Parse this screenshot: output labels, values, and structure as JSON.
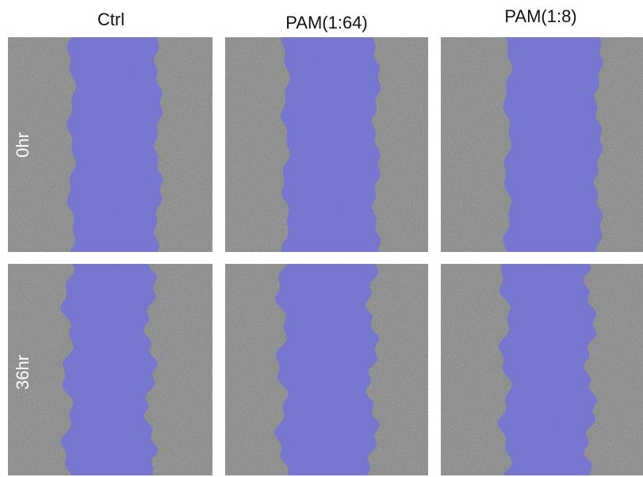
{
  "columns": [
    "Ctrl",
    "PAM(1:64)",
    "PAM(1:8)"
  ],
  "rows": [
    "0hr",
    "36hr"
  ]
}
